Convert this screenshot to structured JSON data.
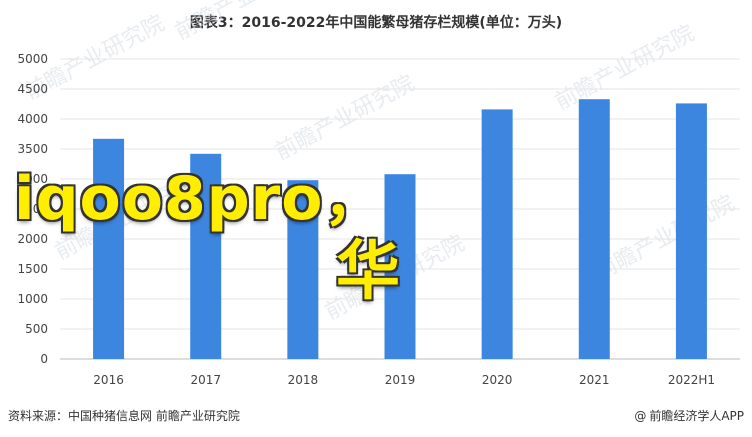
{
  "chart_data": {
    "type": "bar",
    "title": "图表3：2016-2022年中国能繁母猪存栏规模(单位：万头)",
    "categories": [
      "2016",
      "2017",
      "2018",
      "2019",
      "2020",
      "2021",
      "2022H1"
    ],
    "values": [
      3670,
      3420,
      2980,
      3080,
      4160,
      4330,
      4260
    ],
    "ylim": [
      0,
      5000
    ],
    "yticks": [
      0,
      500,
      1000,
      1500,
      2000,
      2500,
      3000,
      3500,
      4000,
      4500,
      5000
    ],
    "bar_color": "#3d86e0",
    "grid": true
  },
  "overlay": {
    "text": "iqoo8pro，",
    "text_cn": "华",
    "color": "#ffee00"
  },
  "watermark": "前瞻产业研究院",
  "footer": {
    "source": "资料来源：中国种猪信息网 前瞻产业研究院",
    "brand": "前瞻经济学人APP"
  }
}
